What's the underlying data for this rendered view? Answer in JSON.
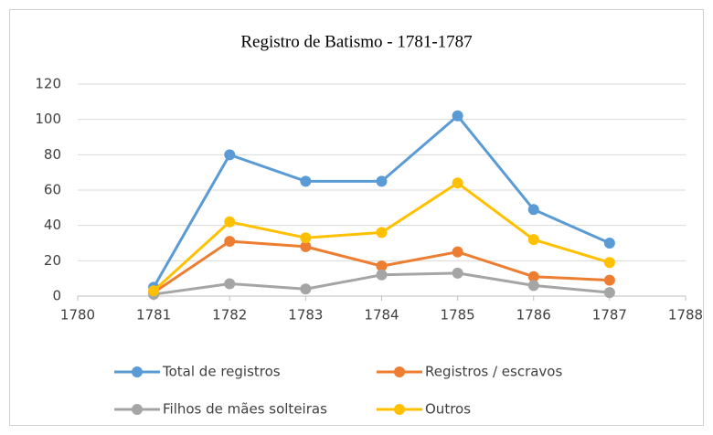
{
  "chart_data": {
    "type": "line",
    "title": "Registro de Batismo - 1781-1787",
    "x": [
      1781,
      1782,
      1783,
      1784,
      1785,
      1786,
      1787
    ],
    "series": [
      {
        "name": "Total de registros",
        "color": "#5b9bd5",
        "values": [
          5,
          80,
          65,
          65,
          102,
          49,
          30
        ]
      },
      {
        "name": "Registros / escravos",
        "color": "#ed7d31",
        "values": [
          2,
          31,
          28,
          17,
          25,
          11,
          9
        ]
      },
      {
        "name": "Filhos de mães solteiras",
        "color": "#a5a5a5",
        "values": [
          1,
          7,
          4,
          12,
          13,
          6,
          2
        ]
      },
      {
        "name": "Outros",
        "color": "#ffc000",
        "values": [
          3,
          42,
          33,
          36,
          64,
          32,
          19
        ]
      }
    ],
    "xlim": [
      1780,
      1788
    ],
    "xticks": [
      1780,
      1781,
      1782,
      1783,
      1784,
      1785,
      1786,
      1787,
      1788
    ],
    "ylim": [
      0,
      120
    ],
    "yticks": [
      0,
      20,
      40,
      60,
      80,
      100,
      120
    ],
    "grid": true,
    "legend": "bottom"
  }
}
